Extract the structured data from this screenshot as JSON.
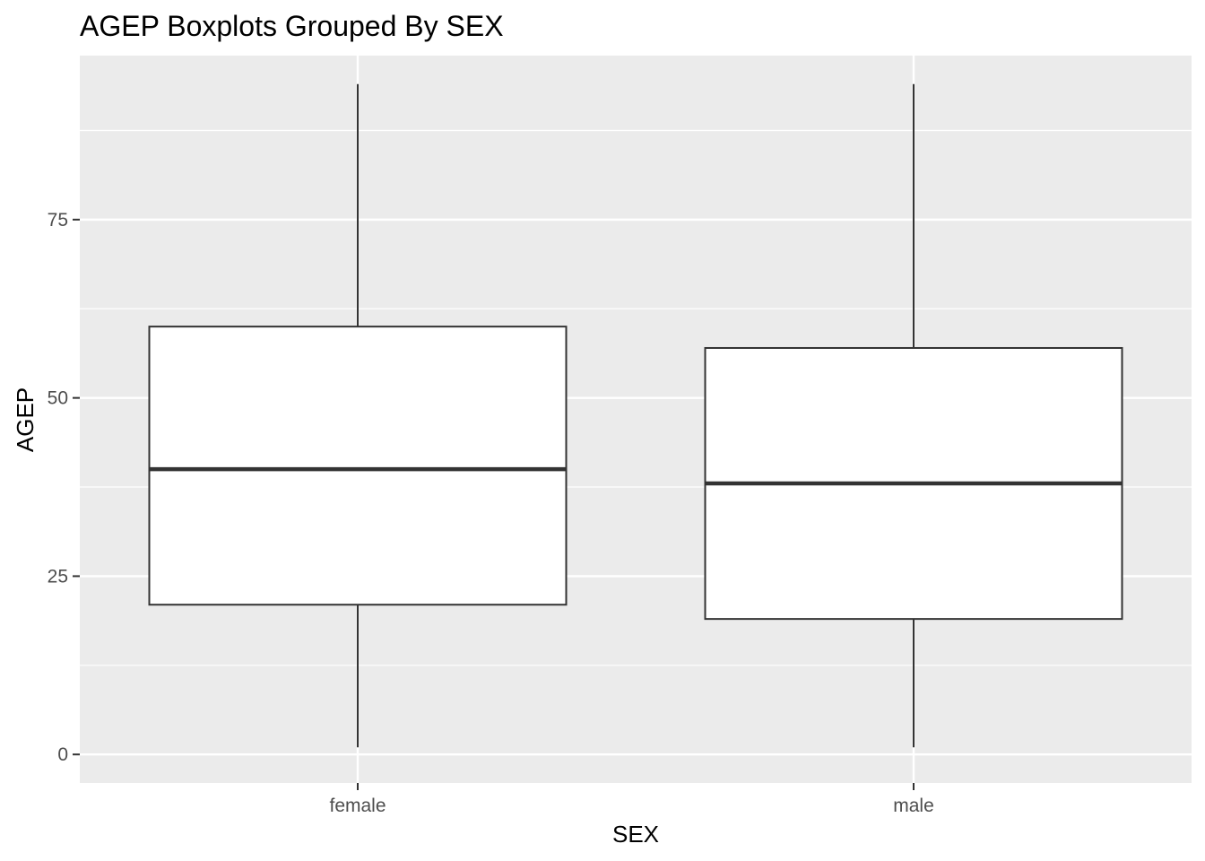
{
  "chart_data": {
    "type": "boxplot",
    "title": "AGEP Boxplots Grouped By SEX",
    "xlabel": "SEX",
    "ylabel": "AGEP",
    "categories": [
      "female",
      "male"
    ],
    "ylim": [
      -4,
      98
    ],
    "yticks": [
      0,
      25,
      50,
      75
    ],
    "y_minor_ticks": [
      12.5,
      37.5,
      62.5,
      87.5
    ],
    "grid": true,
    "legend": "none",
    "boxes": [
      {
        "category": "female",
        "min": 1,
        "q1": 21,
        "median": 40,
        "q3": 60,
        "max": 94
      },
      {
        "category": "male",
        "min": 1,
        "q1": 19,
        "median": 38,
        "q3": 57,
        "max": 94
      }
    ],
    "colors": {
      "panel_background": "#ebebeb",
      "grid": "#ffffff",
      "box_fill": "#ffffff",
      "box_stroke": "#333333",
      "tick": "#333333"
    }
  }
}
